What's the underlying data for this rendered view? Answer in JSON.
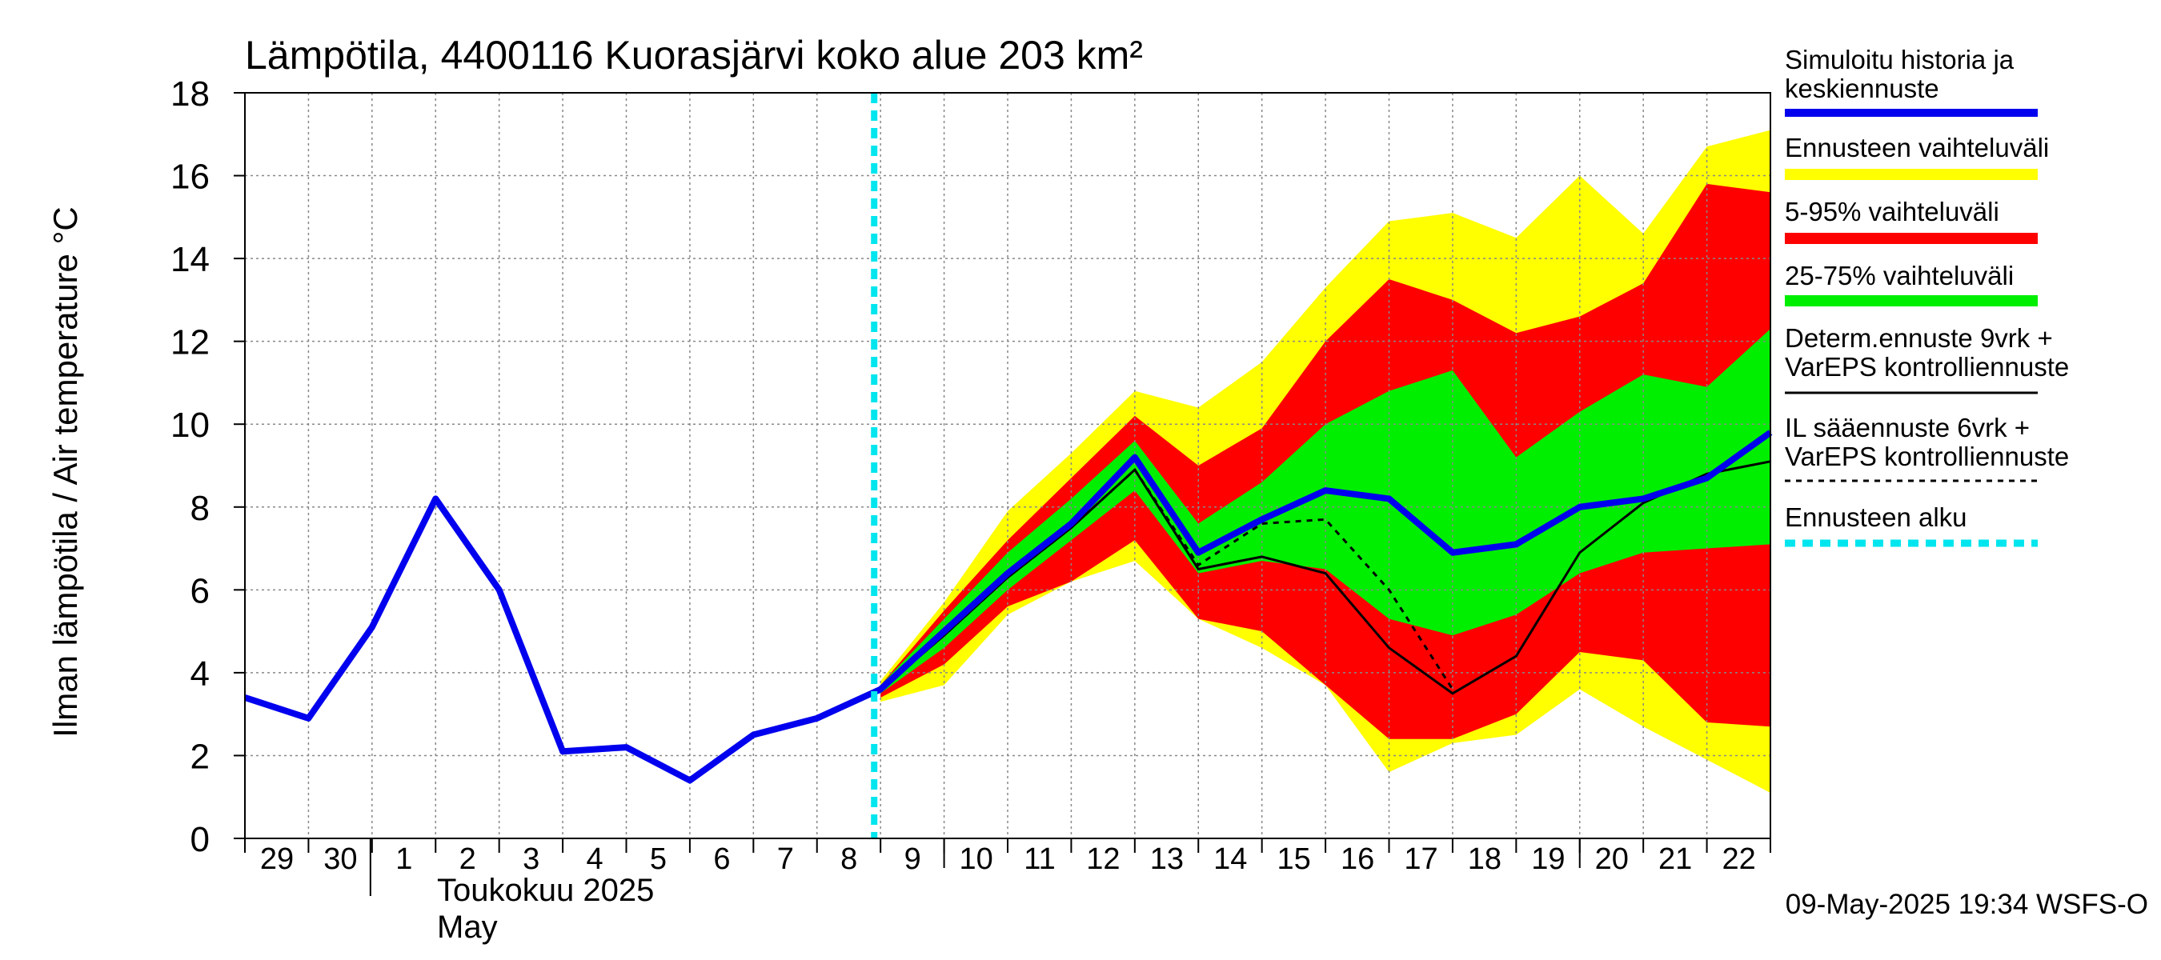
{
  "chart_data": {
    "type": "area",
    "title": "Lämpötila, 4400116 Kuorasjärvi koko alue 203 km²",
    "ylabel": "Ilman lämpötila / Air temperature   °C",
    "ylim": [
      0,
      18
    ],
    "yticks": [
      0,
      2,
      4,
      6,
      8,
      10,
      12,
      14,
      16,
      18
    ],
    "xlim": [
      -10,
      14
    ],
    "grid": true,
    "legend_position": "right",
    "x_tick_labels": [
      {
        "x": -10,
        "label": "29"
      },
      {
        "x": -9,
        "label": "30"
      },
      {
        "x": -8,
        "label": "1"
      },
      {
        "x": -7,
        "label": "2"
      },
      {
        "x": -6,
        "label": "3"
      },
      {
        "x": -5,
        "label": "4"
      },
      {
        "x": -4,
        "label": "5"
      },
      {
        "x": -3,
        "label": "6"
      },
      {
        "x": -2,
        "label": "7"
      },
      {
        "x": -1,
        "label": "8"
      },
      {
        "x": 0,
        "label": "9"
      },
      {
        "x": 1,
        "label": "10"
      },
      {
        "x": 2,
        "label": "11"
      },
      {
        "x": 3,
        "label": "12"
      },
      {
        "x": 4,
        "label": "13"
      },
      {
        "x": 5,
        "label": "14"
      },
      {
        "x": 6,
        "label": "15"
      },
      {
        "x": 7,
        "label": "16"
      },
      {
        "x": 8,
        "label": "17"
      },
      {
        "x": 9,
        "label": "18"
      },
      {
        "x": 10,
        "label": "19"
      },
      {
        "x": 11,
        "label": "20"
      },
      {
        "x": 12,
        "label": "21"
      },
      {
        "x": 13,
        "label": "22"
      }
    ],
    "month_fi": "Toukokuu  2025",
    "month_en": "May",
    "forecast_start_x": -0.1,
    "timestamp": "09-May-2025 19:34 WSFS-O",
    "series": [
      {
        "name": "Simuloitu historia ja keskiennuste",
        "kind": "line",
        "color": "#0000ee",
        "x": [
          -10,
          -9,
          -8,
          -7,
          -6,
          -5,
          -4,
          -3,
          -2,
          -1,
          0,
          1,
          2,
          3,
          4,
          5,
          6,
          7,
          8,
          9,
          10,
          11,
          12,
          13,
          14
        ],
        "values": [
          3.4,
          2.9,
          5.1,
          8.2,
          6.0,
          2.1,
          2.2,
          1.4,
          2.5,
          2.9,
          3.6,
          5.0,
          6.4,
          7.6,
          9.2,
          6.9,
          7.7,
          8.4,
          8.2,
          6.9,
          7.1,
          8.0,
          8.2,
          8.7,
          9.8
        ]
      },
      {
        "name": "Ennusteen vaihteluväli",
        "kind": "band",
        "color": "#ffff00",
        "x": [
          0,
          1,
          2,
          3,
          4,
          5,
          6,
          7,
          8,
          9,
          10,
          11,
          12,
          13,
          14
        ],
        "low": [
          3.3,
          3.7,
          5.4,
          6.2,
          6.7,
          5.3,
          4.6,
          3.7,
          1.6,
          2.3,
          2.5,
          3.6,
          2.7,
          1.9,
          1.1
        ],
        "high": [
          3.8,
          5.7,
          7.9,
          9.3,
          10.8,
          10.4,
          11.5,
          13.3,
          14.9,
          15.1,
          14.5,
          16.0,
          14.6,
          16.7,
          17.1
        ]
      },
      {
        "name": "5-95% vaihteluväli",
        "kind": "band",
        "color": "#ff0000",
        "x": [
          0,
          1,
          2,
          3,
          4,
          5,
          6,
          7,
          8,
          9,
          10,
          11,
          12,
          13,
          14
        ],
        "low": [
          3.4,
          4.2,
          5.6,
          6.2,
          7.2,
          6.3,
          6.7,
          5.7,
          5.3,
          4.9,
          5.4,
          6.4,
          6.9,
          7.0,
          7.1
        ],
        "high": [
          3.7,
          5.5,
          7.2,
          8.7,
          10.2,
          9.0,
          9.9,
          12.0,
          13.5,
          13.0,
          12.2,
          12.6,
          13.4,
          15.8,
          15.6
        ],
        "low5": [
          3.4,
          4.2,
          5.6,
          6.2,
          7.2,
          5.3,
          5.0,
          3.7,
          2.4,
          2.4,
          3.0,
          4.5,
          4.3,
          2.8,
          2.7
        ]
      },
      {
        "name": "25-75% vaihteluväli",
        "kind": "band",
        "color": "#00ee00",
        "x": [
          0,
          1,
          2,
          3,
          4,
          5,
          6,
          7,
          8,
          9,
          10,
          11,
          12,
          13,
          14
        ],
        "low": [
          3.5,
          4.6,
          6.0,
          7.2,
          8.4,
          6.4,
          6.7,
          6.5,
          5.3,
          4.9,
          5.4,
          6.4,
          6.9,
          7.0,
          7.1
        ],
        "high": [
          3.7,
          5.3,
          6.9,
          8.2,
          9.6,
          7.6,
          8.6,
          10.0,
          10.8,
          11.3,
          9.2,
          10.3,
          11.2,
          10.9,
          12.3
        ]
      },
      {
        "name": "Determ.ennuste 9vrk + VarEPS kontrolliennuste",
        "kind": "line",
        "color": "#000000",
        "x": [
          0,
          1,
          2,
          3,
          4,
          5,
          6,
          7,
          8,
          9,
          10,
          11,
          12,
          13,
          14
        ],
        "values": [
          3.6,
          4.9,
          6.3,
          7.5,
          8.9,
          6.5,
          6.8,
          6.4,
          4.6,
          3.5,
          4.4,
          6.9,
          8.1,
          8.8,
          9.1
        ]
      },
      {
        "name": "IL sääennuste 6vrk  +  VarEPS kontrolliennuste",
        "kind": "dashed",
        "color": "#000000",
        "x": [
          0,
          1,
          2,
          3,
          4,
          5,
          6,
          7,
          8,
          9
        ],
        "values": [
          3.6,
          4.9,
          6.3,
          7.5,
          8.9,
          6.6,
          7.6,
          7.7,
          6.0,
          3.6
        ]
      },
      {
        "name": "Ennusteen alku",
        "kind": "vline",
        "color": "#00e5ee"
      }
    ]
  }
}
